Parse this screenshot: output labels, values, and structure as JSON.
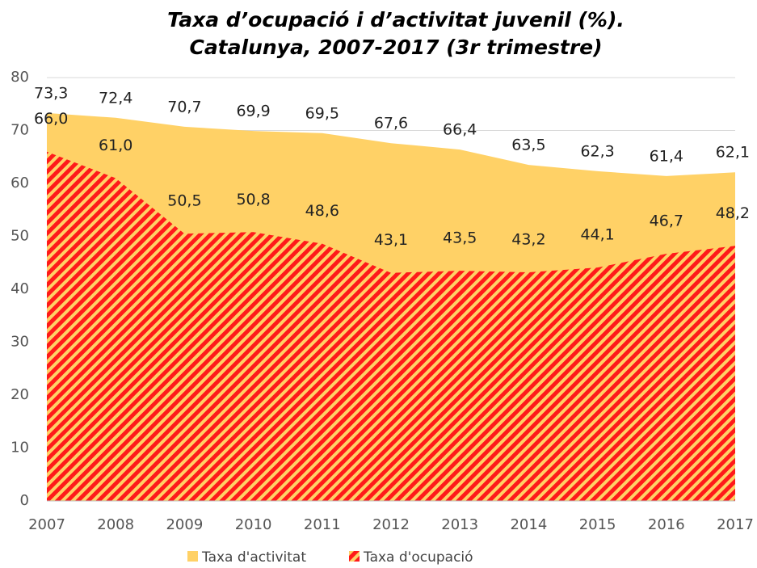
{
  "chart_data": {
    "type": "area",
    "title": [
      "Taxa d’ocupació i d’activitat juvenil (%).",
      "Catalunya, 2007-2017 (3r trimestre)"
    ],
    "x": [
      2007,
      2008,
      2009,
      2010,
      2011,
      2012,
      2013,
      2014,
      2015,
      2016,
      2017
    ],
    "xlim": [
      2007,
      2017
    ],
    "xticks": [
      2007,
      2008,
      2009,
      2010,
      2011,
      2012,
      2013,
      2014,
      2015,
      2016,
      2017
    ],
    "ylim": [
      0,
      80
    ],
    "yticks": [
      0,
      10,
      20,
      30,
      40,
      50,
      60,
      70,
      80
    ],
    "grid": true,
    "legend": "bottom",
    "series": [
      {
        "name": "Taxa d'activitat",
        "color": "#ffd166",
        "values": [
          73.3,
          72.4,
          70.7,
          69.9,
          69.5,
          67.6,
          66.4,
          63.5,
          62.3,
          61.4,
          62.1
        ],
        "value_labels": [
          "73,3",
          "72,4",
          "70,7",
          "69,9",
          "69,5",
          "67,6",
          "66,4",
          "63,5",
          "62,3",
          "61,4",
          "62,1"
        ]
      },
      {
        "name": "Taxa d'ocupació",
        "color": "#ff1a1a",
        "values": [
          66.0,
          61.0,
          50.5,
          50.8,
          48.6,
          43.1,
          43.5,
          43.2,
          44.1,
          46.7,
          48.2
        ],
        "value_labels": [
          "66,0",
          "61,0",
          "50,5",
          "50,8",
          "48,6",
          "43,1",
          "43,5",
          "43,2",
          "44,1",
          "46,7",
          "48,2"
        ]
      }
    ]
  }
}
